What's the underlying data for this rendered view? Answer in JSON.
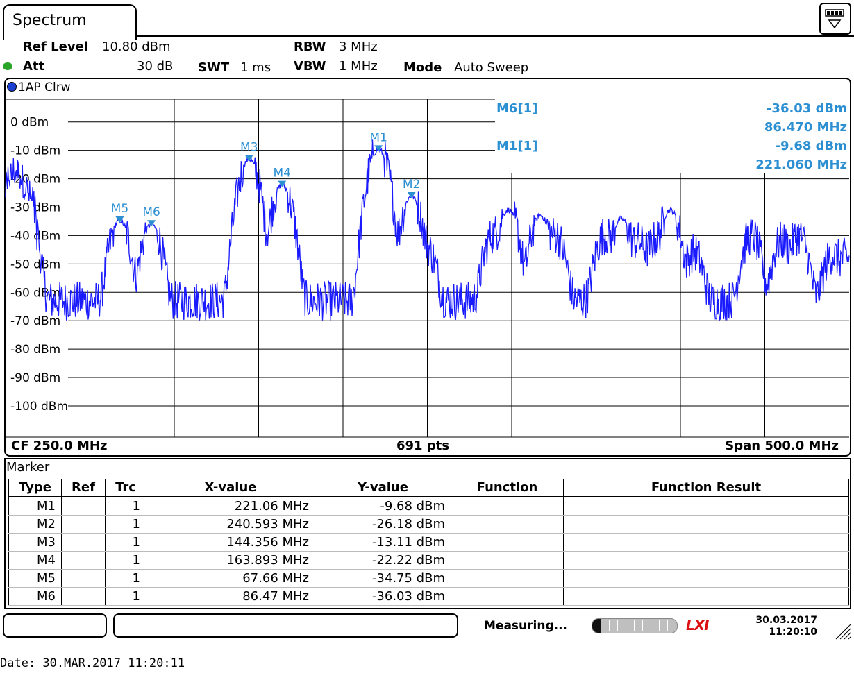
{
  "tab": {
    "title": "Spectrum"
  },
  "settings": {
    "ref_level_label": "Ref Level",
    "ref_level_value": "10.80 dBm",
    "att_label": "Att",
    "att_value": "30 dB",
    "swt_label": "SWT",
    "swt_value": "1 ms",
    "rbw_label": "RBW",
    "rbw_value": "3 MHz",
    "vbw_label": "VBW",
    "vbw_value": "1 MHz",
    "mode_label": "Mode",
    "mode_value": "Auto Sweep"
  },
  "trace": {
    "label": "1AP Clrw",
    "color": "#1a1aff"
  },
  "marker_readout": [
    {
      "name": "M6[1]",
      "level": "-36.03 dBm",
      "freq": "86.470 MHz"
    },
    {
      "name": "M1[1]",
      "level": "-9.68 dBm",
      "freq": "221.060 MHz"
    }
  ],
  "chart_data": {
    "type": "line",
    "ylabels": [
      "0 dBm",
      "-10 dBm",
      "-20 dBm",
      "-30 dBm",
      "-40 dBm",
      "-50 dBm",
      "-60 dBm",
      "-70 dBm",
      "-80 dBm",
      "-90 dBm",
      "-100 dBm"
    ],
    "ylim": [
      -111,
      8
    ],
    "xlim": [
      0,
      500
    ],
    "x_unit": "MHz",
    "noise_floor_dbm": -63,
    "peaks": [
      {
        "x": 67.66,
        "y": -34.75
      },
      {
        "x": 86.47,
        "y": -36.03
      },
      {
        "x": 144.356,
        "y": -13.11
      },
      {
        "x": 163.893,
        "y": -22.22
      },
      {
        "x": 221.06,
        "y": -9.68
      },
      {
        "x": 240.593,
        "y": -26.18
      },
      {
        "x": 250,
        "y": -45
      },
      {
        "x": 289,
        "y": -40
      },
      {
        "x": 298,
        "y": -31
      },
      {
        "x": 317,
        "y": -33
      },
      {
        "x": 326,
        "y": -40
      },
      {
        "x": 355,
        "y": -40
      },
      {
        "x": 365,
        "y": -34
      },
      {
        "x": 375,
        "y": -42
      },
      {
        "x": 385,
        "y": -42
      },
      {
        "x": 394,
        "y": -31
      },
      {
        "x": 408,
        "y": -46
      },
      {
        "x": 442,
        "y": -40
      },
      {
        "x": 460,
        "y": -42
      },
      {
        "x": 470,
        "y": -40
      },
      {
        "x": 490,
        "y": -47
      },
      {
        "x": 498,
        "y": -48
      },
      {
        "x": 6,
        "y": -20
      },
      {
        "x": 12,
        "y": -28
      }
    ],
    "markers": [
      {
        "name": "M1",
        "x": 221.06,
        "y": -9.68
      },
      {
        "name": "M2",
        "x": 240.593,
        "y": -26.18
      },
      {
        "name": "M3",
        "x": 144.356,
        "y": -13.11
      },
      {
        "name": "M4",
        "x": 163.893,
        "y": -22.22
      },
      {
        "name": "M5",
        "x": 67.66,
        "y": -34.75
      },
      {
        "name": "M6",
        "x": 86.47,
        "y": -36.03
      }
    ],
    "cf_label": "CF 250.0 MHz",
    "pts_label": "691 pts",
    "span_label": "Span 500.0 MHz",
    "grid": true
  },
  "marker_table": {
    "title": "Marker",
    "headers": [
      "Type",
      "Ref",
      "Trc",
      "X-value",
      "Y-value",
      "Function",
      "Function Result"
    ],
    "rows": [
      [
        "M1",
        "",
        "1",
        "221.06 MHz",
        "-9.68 dBm",
        "",
        ""
      ],
      [
        "M2",
        "",
        "1",
        "240.593 MHz",
        "-26.18 dBm",
        "",
        ""
      ],
      [
        "M3",
        "",
        "1",
        "144.356 MHz",
        "-13.11 dBm",
        "",
        ""
      ],
      [
        "M4",
        "",
        "1",
        "163.893 MHz",
        "-22.22 dBm",
        "",
        ""
      ],
      [
        "M5",
        "",
        "1",
        "67.66 MHz",
        "-34.75 dBm",
        "",
        ""
      ],
      [
        "M6",
        "",
        "1",
        "86.47 MHz",
        "-36.03 dBm",
        "",
        ""
      ]
    ]
  },
  "status": {
    "measuring": "Measuring...",
    "progress_fraction": 0.1,
    "lxi": "LXI",
    "date": "30.03.2017",
    "time": "11:20:10"
  },
  "footer": {
    "date_line": "Date: 30.MAR.2017  11:20:11"
  }
}
